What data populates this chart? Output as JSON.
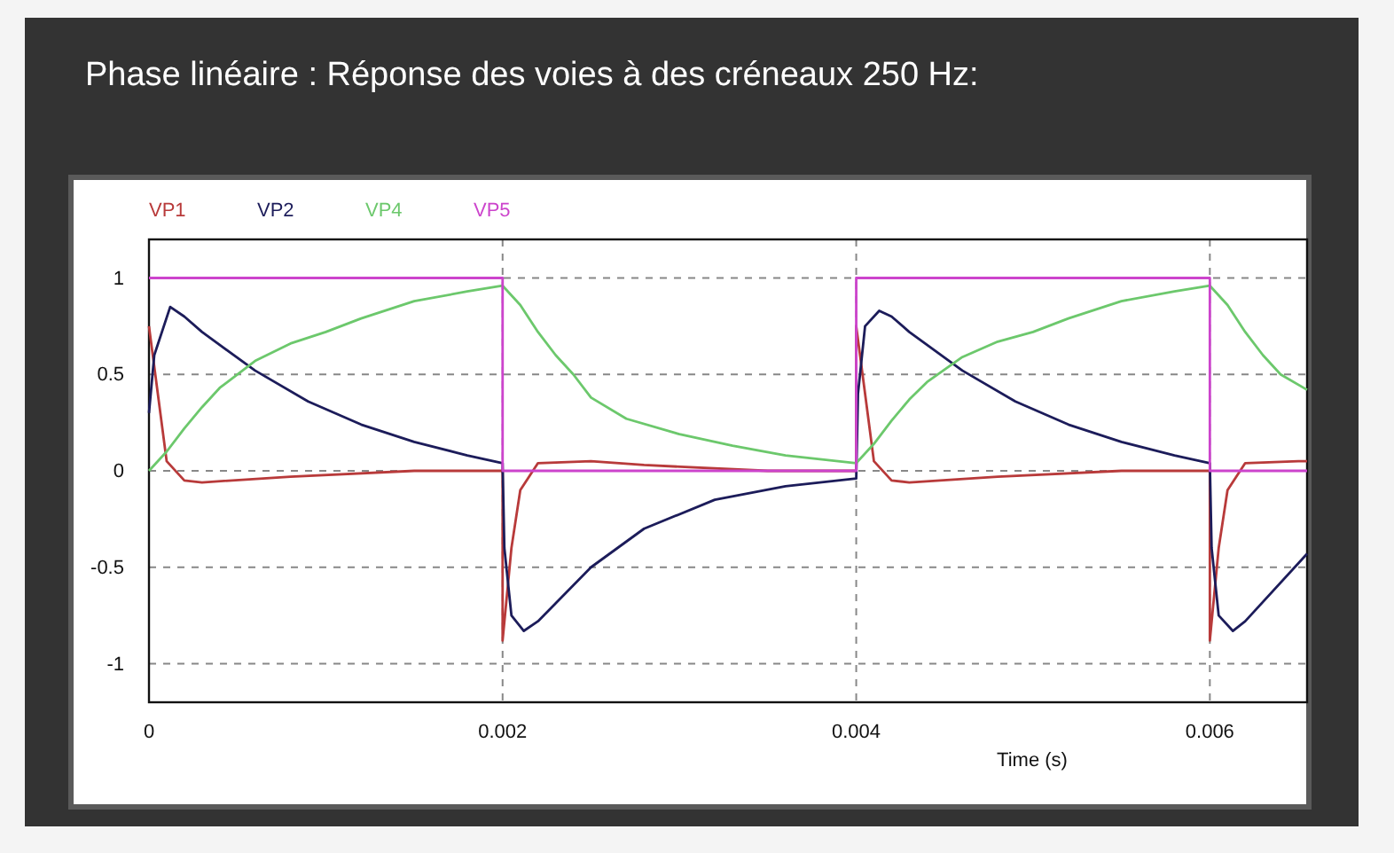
{
  "chart_data": {
    "type": "line",
    "title": "Phase linéaire : Réponse des voies à des créneaux 250 Hz:",
    "xlabel": "Time (s)",
    "xlim": [
      0,
      0.00655
    ],
    "xticks": [
      0,
      0.002,
      0.004,
      0.006
    ],
    "ylim": [
      -1.2,
      1.2
    ],
    "yticks": [
      -1,
      -0.5,
      0,
      0.5,
      1
    ],
    "grid": true,
    "legend": "top left",
    "line_style": "solid",
    "marker": "none",
    "series": [
      {
        "name": "VP1",
        "color": "#b83a3a",
        "x": [
          0,
          5e-05,
          0.0001,
          0.0002,
          0.0003,
          0.0008,
          0.0015,
          0.002,
          0.002,
          0.00205,
          0.0021,
          0.0022,
          0.0025,
          0.0028,
          0.0035,
          0.004,
          0.004,
          0.00405,
          0.0041,
          0.0042,
          0.0043,
          0.0048,
          0.0055,
          0.006,
          0.006,
          0.00605,
          0.0061,
          0.0062,
          0.0065,
          0.00655
        ],
        "values": [
          0.75,
          0.4,
          0.05,
          -0.05,
          -0.06,
          -0.03,
          0,
          0,
          -0.88,
          -0.4,
          -0.1,
          0.04,
          0.05,
          0.03,
          0,
          0,
          0.75,
          0.4,
          0.05,
          -0.05,
          -0.06,
          -0.03,
          0,
          0,
          -0.88,
          -0.4,
          -0.1,
          0.04,
          0.05,
          0.05
        ]
      },
      {
        "name": "VP2",
        "color": "#1c1c5a",
        "x": [
          0,
          3e-05,
          0.00012,
          0.0002,
          0.0003,
          0.0006,
          0.0009,
          0.0012,
          0.0015,
          0.0018,
          0.002,
          0.00201,
          0.00205,
          0.00212,
          0.0022,
          0.0025,
          0.0028,
          0.0032,
          0.0036,
          0.004,
          0.00401,
          0.00405,
          0.00413,
          0.0042,
          0.0043,
          0.0046,
          0.0049,
          0.0052,
          0.0055,
          0.0058,
          0.006,
          0.00601,
          0.00605,
          0.00613,
          0.0062,
          0.00655
        ],
        "values": [
          0.3,
          0.6,
          0.85,
          0.8,
          0.72,
          0.52,
          0.36,
          0.24,
          0.15,
          0.08,
          0.04,
          -0.4,
          -0.75,
          -0.83,
          -0.78,
          -0.5,
          -0.3,
          -0.15,
          -0.08,
          -0.04,
          0.4,
          0.75,
          0.83,
          0.8,
          0.72,
          0.52,
          0.36,
          0.24,
          0.15,
          0.08,
          0.04,
          -0.4,
          -0.75,
          -0.83,
          -0.78,
          -0.43
        ]
      },
      {
        "name": "VP4",
        "color": "#6cc86c",
        "x": [
          0,
          0.0001,
          0.0002,
          0.0003,
          0.0004,
          0.0006,
          0.0008,
          0.001,
          0.0012,
          0.0015,
          0.0018,
          0.002,
          0.0021,
          0.0022,
          0.0023,
          0.0024,
          0.0025,
          0.0027,
          0.003,
          0.0033,
          0.0036,
          0.004,
          0.0041,
          0.0042,
          0.0043,
          0.0044,
          0.0046,
          0.0048,
          0.005,
          0.0052,
          0.0055,
          0.0058,
          0.006,
          0.0061,
          0.0062,
          0.0063,
          0.0064,
          0.00655
        ],
        "values": [
          0,
          0.1,
          0.22,
          0.33,
          0.43,
          0.57,
          0.66,
          0.72,
          0.79,
          0.88,
          0.93,
          0.96,
          0.86,
          0.72,
          0.6,
          0.5,
          0.38,
          0.27,
          0.19,
          0.13,
          0.08,
          0.04,
          0.14,
          0.26,
          0.37,
          0.46,
          0.59,
          0.67,
          0.72,
          0.79,
          0.88,
          0.93,
          0.96,
          0.86,
          0.72,
          0.6,
          0.5,
          0.42
        ]
      },
      {
        "name": "VP5",
        "color": "#cc44cc",
        "x": [
          0,
          0.002,
          0.002,
          0.004,
          0.004,
          0.006,
          0.006,
          0.00655
        ],
        "values": [
          1,
          1,
          0,
          0,
          1,
          1,
          0,
          0
        ]
      }
    ]
  }
}
